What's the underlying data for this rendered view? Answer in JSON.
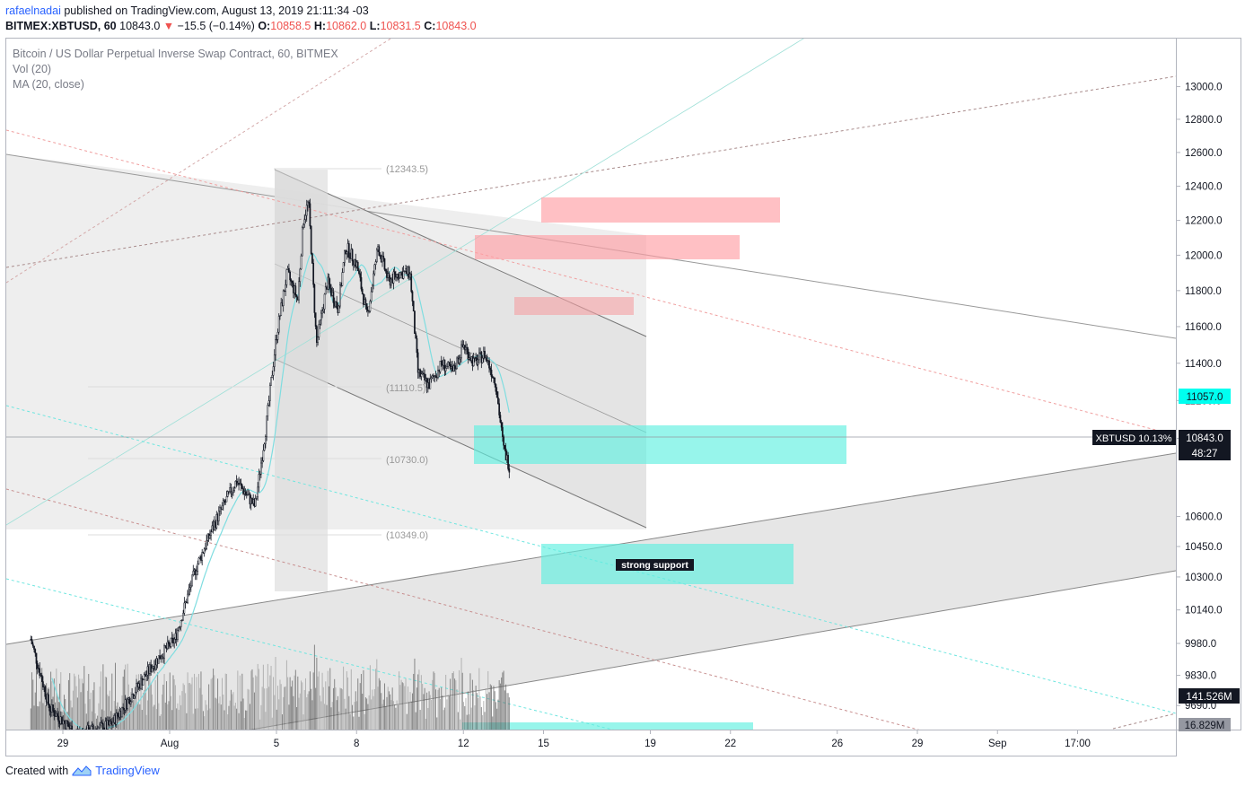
{
  "header": {
    "user": "rafaelnadai",
    "published": "published on TradingView.com, August 13, 2019 21:11:34 -03"
  },
  "ohlc": {
    "symbol": "BITMEX:XBTUSD, 60",
    "last": "10843.0",
    "change": "−15.5 (−0.14%)",
    "o_label": "O:",
    "o": "10858.5",
    "h_label": "H:",
    "h": "10862.0",
    "l_label": "L:",
    "l": "10831.5",
    "c_label": "C:",
    "c": "10843.0"
  },
  "legend": {
    "instrument": "Bitcoin / US Dollar Perpetual Inverse Swap Contract, 60, BITMEX",
    "vol": "Vol (20)",
    "ma": "MA (20, close)"
  },
  "footer": {
    "created": "Created with",
    "brand": "TradingView"
  },
  "colors": {
    "up": "#131722",
    "ma": "#7fdde0",
    "resistance": "#ff9ea4",
    "support": "#5ff0e0",
    "price_label": "#131722",
    "ma_label": "#00fff0"
  },
  "chart_data": {
    "type": "candlestick",
    "y_scale": "log",
    "ylim": [
      9580,
      13300
    ],
    "y_ticks": [
      "13000.0",
      "12800.0",
      "12600.0",
      "12400.0",
      "12200.0",
      "12000.0",
      "11800.0",
      "11600.0",
      "11400.0",
      "11200.0",
      "11000.0",
      "10600.0",
      "10450.0",
      "10300.0",
      "10140.0",
      "9980.0",
      "9830.0",
      "9690.0"
    ],
    "x_ticks": [
      {
        "label": "29",
        "day": -3
      },
      {
        "label": "Aug",
        "day": 1
      },
      {
        "label": "5",
        "day": 5
      },
      {
        "label": "8",
        "day": 8
      },
      {
        "label": "12",
        "day": 12
      },
      {
        "label": "15",
        "day": 15
      },
      {
        "label": "19",
        "day": 19
      },
      {
        "label": "22",
        "day": 22
      },
      {
        "label": "26",
        "day": 26
      },
      {
        "label": "29",
        "day": 29
      },
      {
        "label": "Sep",
        "day": 32
      },
      {
        "label": "17:00",
        "day": 35
      }
    ],
    "price_path": [
      {
        "day": -4.2,
        "price": 10000
      },
      {
        "day": -3.5,
        "price": 9680
      },
      {
        "day": -2.5,
        "price": 9560
      },
      {
        "day": -1.2,
        "price": 9600
      },
      {
        "day": -0.3,
        "price": 9760
      },
      {
        "day": 0.5,
        "price": 9900
      },
      {
        "day": 1.2,
        "price": 10000
      },
      {
        "day": 2.0,
        "price": 10350
      },
      {
        "day": 2.8,
        "price": 10600
      },
      {
        "day": 3.5,
        "price": 10780
      },
      {
        "day": 4.2,
        "price": 10650
      },
      {
        "day": 4.6,
        "price": 11050
      },
      {
        "day": 5.0,
        "price": 11550
      },
      {
        "day": 5.4,
        "price": 11900
      },
      {
        "day": 5.8,
        "price": 11750
      },
      {
        "day": 6.0,
        "price": 12200
      },
      {
        "day": 6.2,
        "price": 12310
      },
      {
        "day": 6.5,
        "price": 11500
      },
      {
        "day": 6.9,
        "price": 11850
      },
      {
        "day": 7.3,
        "price": 11700
      },
      {
        "day": 7.6,
        "price": 12050
      },
      {
        "day": 8.0,
        "price": 11950
      },
      {
        "day": 8.4,
        "price": 11650
      },
      {
        "day": 8.8,
        "price": 12050
      },
      {
        "day": 9.2,
        "price": 11850
      },
      {
        "day": 9.6,
        "price": 11900
      },
      {
        "day": 10.0,
        "price": 11900
      },
      {
        "day": 10.3,
        "price": 11350
      },
      {
        "day": 10.7,
        "price": 11280
      },
      {
        "day": 11.2,
        "price": 11400
      },
      {
        "day": 11.6,
        "price": 11350
      },
      {
        "day": 12.0,
        "price": 11500
      },
      {
        "day": 12.4,
        "price": 11400
      },
      {
        "day": 12.8,
        "price": 11450
      },
      {
        "day": 13.2,
        "price": 11300
      },
      {
        "day": 13.5,
        "price": 10950
      },
      {
        "day": 13.75,
        "price": 10843
      }
    ],
    "last_price": {
      "label": "XBTUSD 10.13%",
      "value": "10843.0",
      "countdown": "48:27"
    },
    "ma_value": "11057.0",
    "volume_axis": [
      "141.526M",
      "16.829M"
    ],
    "levels": [
      "(12343.5)",
      "(11110.5)",
      "(10730.0)",
      "(10349.0)"
    ],
    "annotations": [
      {
        "text": "strong support",
        "kind": "support"
      }
    ]
  }
}
